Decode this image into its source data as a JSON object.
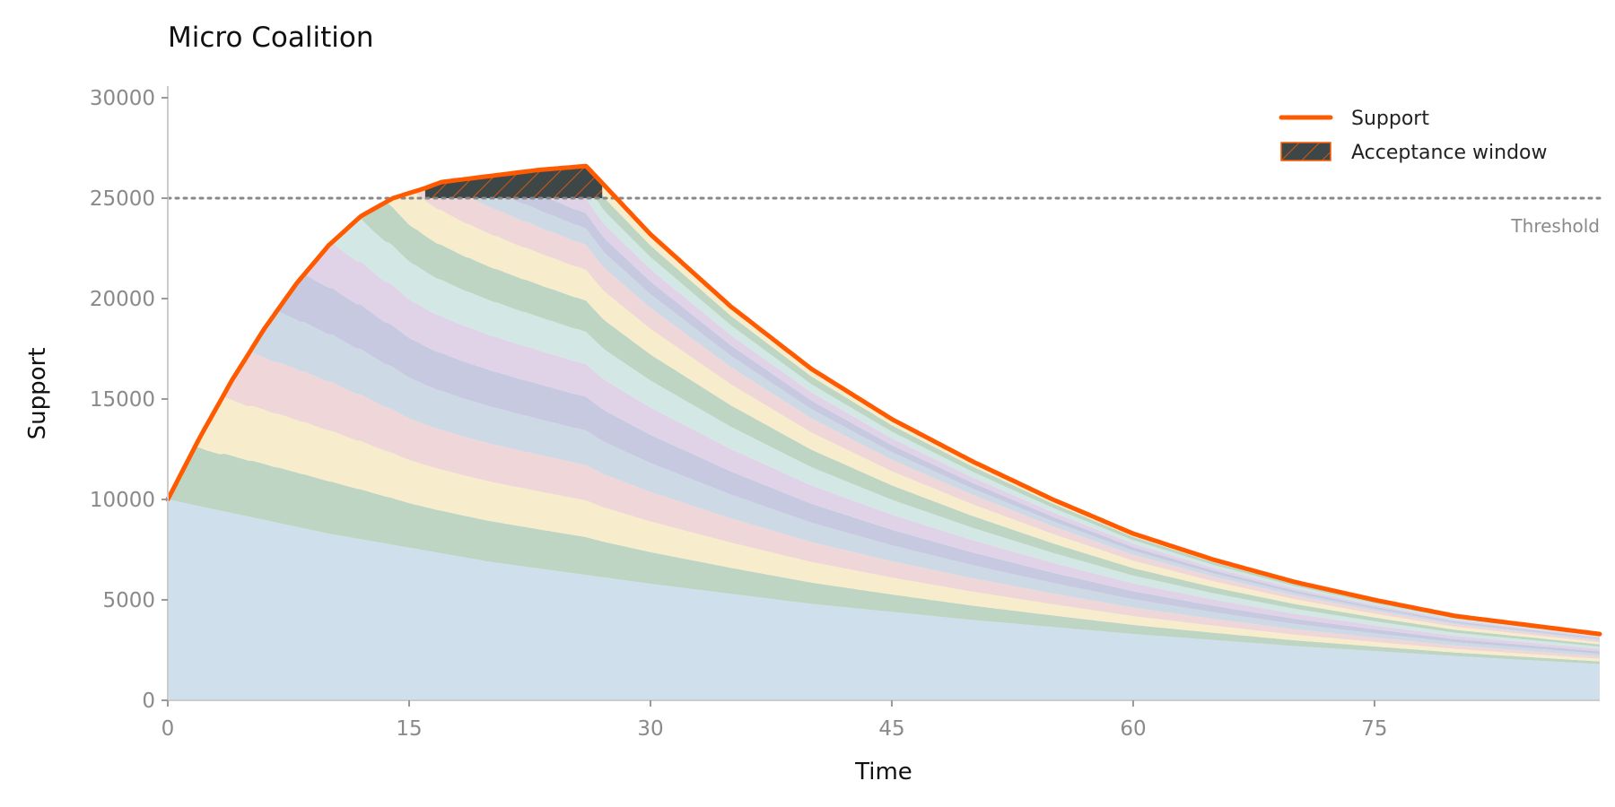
{
  "chart_data": {
    "type": "area",
    "title": "Micro Coalition",
    "xlabel": "Time",
    "ylabel": "Support",
    "xlim": [
      0,
      89
    ],
    "ylim": [
      0,
      30000
    ],
    "xticks": [
      0,
      15,
      30,
      45,
      60,
      75
    ],
    "yticks": [
      0,
      5000,
      10000,
      15000,
      20000,
      25000,
      30000
    ],
    "grid": false,
    "legend_position": "top-right",
    "colors": {
      "support": "#ff5a00",
      "window_fill": "#3d4747",
      "threshold": "#888888",
      "axis": "#cccccc",
      "layers": [
        "#cfe0ec",
        "#bed5c3",
        "#f7edcc",
        "#efd6d8",
        "#cdd9e4",
        "#c6c9e0",
        "#e0d3e8",
        "#d3e8e4"
      ]
    },
    "threshold": {
      "value": 25000,
      "label": "Threshold"
    },
    "acceptance_window": {
      "x_start": 16,
      "x_end": 27
    },
    "series": [
      {
        "name": "Support",
        "x": [
          0,
          2,
          4,
          6,
          8,
          10,
          12,
          14,
          16,
          17,
          20,
          23,
          26,
          27,
          30,
          35,
          40,
          45,
          50,
          55,
          60,
          65,
          70,
          75,
          80,
          85,
          89
        ],
        "values": [
          10000,
          13100,
          15950,
          18500,
          20750,
          22650,
          24100,
          25000,
          25500,
          25800,
          26100,
          26400,
          26600,
          25750,
          23200,
          19600,
          16500,
          14000,
          11900,
          10000,
          8300,
          7000,
          5900,
          5000,
          4200,
          3700,
          3300
        ]
      }
    ],
    "layers": {
      "base": {
        "x": [
          0,
          10,
          20,
          30,
          40,
          50,
          60,
          70,
          80,
          89
        ],
        "values": [
          10000,
          8300,
          6900,
          5800,
          4800,
          4000,
          3300,
          2700,
          2200,
          1800
        ]
      },
      "cohort_start_times": [
        0,
        1.7,
        3.4,
        5.1,
        6.8,
        8.5,
        10.2,
        11.9,
        13.6,
        15.3,
        17,
        18.7,
        20.4,
        22.1,
        23.8,
        25.5
      ],
      "cohort_size": [
        3100,
        2900,
        2700,
        2550,
        2400,
        2250,
        2150,
        2000,
        1900,
        1500,
        950,
        850,
        800,
        750,
        700,
        650
      ]
    },
    "legend": [
      {
        "label": "Support",
        "kind": "line"
      },
      {
        "label": "Acceptance window",
        "kind": "hatch"
      }
    ]
  }
}
